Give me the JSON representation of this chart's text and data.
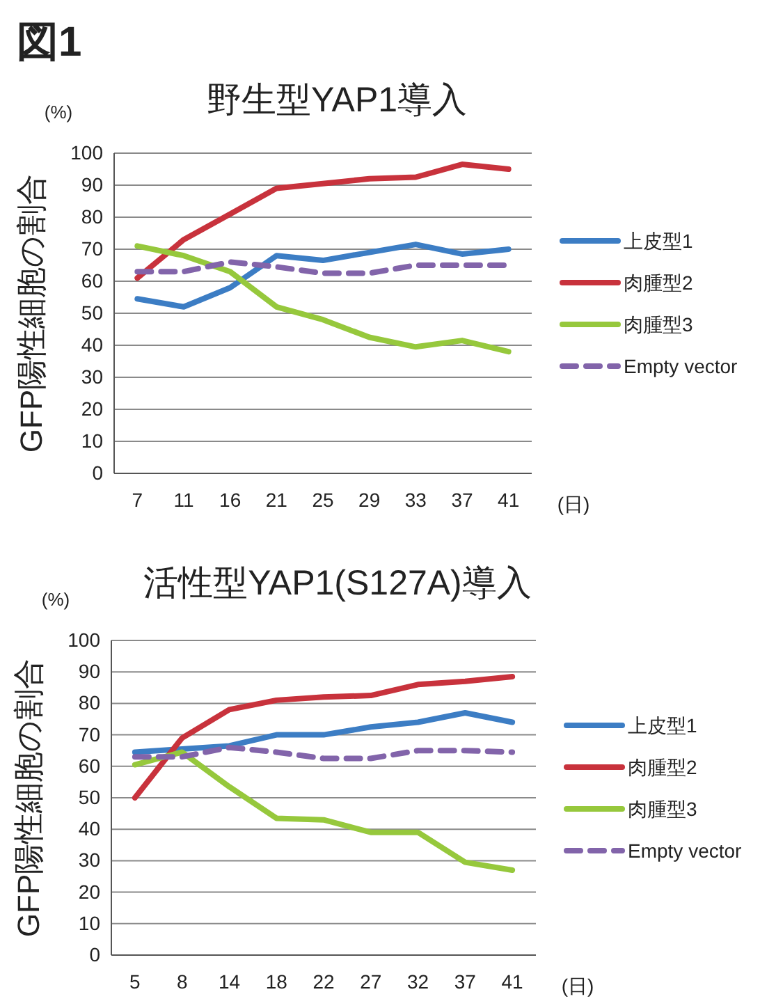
{
  "chart_data": [
    {
      "type": "line",
      "title": "野生型YAP1導入",
      "ylabel": "GFP陽性細胞の割合",
      "xlabel": "(日)",
      "annotations": [
        "図1",
        "(%)"
      ],
      "categories": [
        "7",
        "11",
        "16",
        "21",
        "25",
        "29",
        "33",
        "37",
        "41"
      ],
      "ylim": [
        0,
        100
      ],
      "yticks": [
        0,
        10,
        20,
        30,
        40,
        50,
        60,
        70,
        80,
        90,
        100
      ],
      "grid": "y",
      "legend": "right",
      "marker": "none",
      "series": [
        {
          "name": "上皮型1",
          "color": "#3c7dc4",
          "values": [
            54.5,
            52,
            58,
            68,
            66.5,
            69,
            71.5,
            68.5,
            70
          ]
        },
        {
          "name": "肉腫型2",
          "color": "#c8323c",
          "values": [
            61,
            73,
            81,
            89,
            90.5,
            92,
            92.5,
            96.5,
            95
          ]
        },
        {
          "name": "肉腫型3",
          "color": "#96c83c",
          "values": [
            71,
            68,
            63,
            52,
            48,
            42.5,
            39.5,
            41.5,
            38
          ]
        },
        {
          "name": "Empty vector",
          "color": "#8264aa",
          "line_style": "dashed",
          "values": [
            63,
            63,
            66,
            64.5,
            62.5,
            62.5,
            65,
            65,
            65
          ]
        }
      ]
    },
    {
      "type": "line",
      "title": "活性型YAP1(S127A)導入",
      "ylabel": "GFP陽性細胞の割合",
      "xlabel": "(日)",
      "annotations": [
        "(%)"
      ],
      "categories": [
        "5",
        "8",
        "14",
        "18",
        "22",
        "27",
        "32",
        "37",
        "41"
      ],
      "ylim": [
        0,
        100
      ],
      "yticks": [
        0,
        10,
        20,
        30,
        40,
        50,
        60,
        70,
        80,
        90,
        100
      ],
      "grid": "y",
      "legend": "right",
      "marker": "none",
      "series": [
        {
          "name": "上皮型1",
          "color": "#3c7dc4",
          "values": [
            64.5,
            65.5,
            66.5,
            70,
            70,
            72.5,
            74,
            77,
            74
          ]
        },
        {
          "name": "肉腫型2",
          "color": "#c8323c",
          "values": [
            50,
            69,
            78,
            81,
            82,
            82.5,
            86,
            87,
            88.5
          ]
        },
        {
          "name": "肉腫型3",
          "color": "#96c83c",
          "values": [
            60.5,
            64.5,
            53.5,
            43.5,
            43,
            39,
            39,
            29.5,
            27
          ]
        },
        {
          "name": "Empty vector",
          "color": "#8264aa",
          "line_style": "dashed",
          "values": [
            63,
            63,
            66,
            64.5,
            62.5,
            62.5,
            65,
            65,
            64.5
          ]
        }
      ]
    }
  ]
}
